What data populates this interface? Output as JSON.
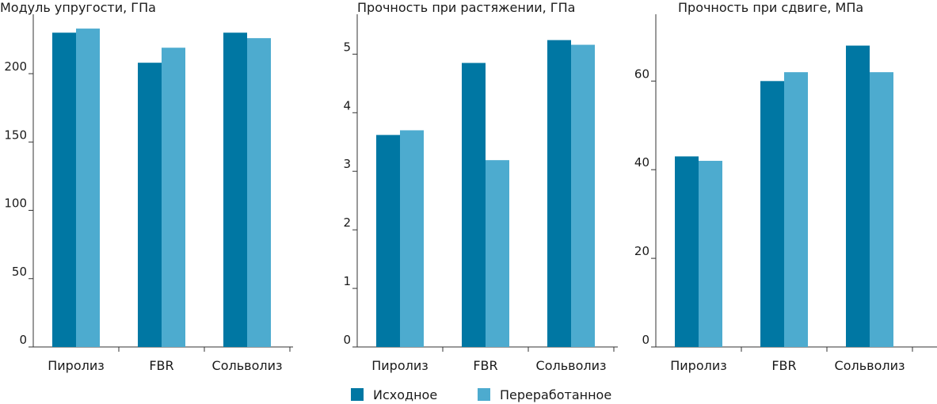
{
  "colors": {
    "original": "#0077a3",
    "recycled": "#4dabcf",
    "axis": "#333333"
  },
  "legend": {
    "original_label": "Исходное",
    "recycled_label": "Переработанное"
  },
  "chart_data": [
    {
      "type": "bar",
      "title": "Модуль упругости, ГПа",
      "categories": [
        "Пиролиз",
        "FBR",
        "Сольволиз"
      ],
      "series": [
        {
          "name": "Исходное",
          "values": [
            230,
            208,
            230
          ]
        },
        {
          "name": "Переработанное",
          "values": [
            233,
            219,
            226
          ]
        }
      ],
      "ylim": [
        0,
        240
      ],
      "yticks": [
        0,
        50,
        100,
        150,
        200
      ],
      "ytick_labels": [
        "0",
        "50",
        "100",
        "150",
        "200"
      ]
    },
    {
      "type": "bar",
      "title": "Прочность при растяжении, ГПа",
      "categories": [
        "Пиролиз",
        "FBR",
        "Сольволиз"
      ],
      "series": [
        {
          "name": "Исходное",
          "values": [
            3.62,
            4.85,
            5.24
          ]
        },
        {
          "name": "Переработанное",
          "values": [
            3.7,
            3.19,
            5.16
          ]
        }
      ],
      "ylim": [
        0,
        5.6
      ],
      "yticks": [
        0,
        1,
        2,
        3,
        4,
        5
      ],
      "ytick_labels": [
        "0",
        "1",
        "2",
        "3",
        "4",
        "5"
      ]
    },
    {
      "type": "bar",
      "title": "Прочность при сдвиге, МПа",
      "categories": [
        "Пиролиз",
        "FBR",
        "Сольволиз"
      ],
      "series": [
        {
          "name": "Исходное",
          "values": [
            43,
            60,
            68
          ]
        },
        {
          "name": "Переработанное",
          "values": [
            42,
            62,
            62
          ]
        }
      ],
      "ylim": [
        0,
        74
      ],
      "yticks": [
        0,
        20,
        40,
        60
      ],
      "ytick_labels": [
        "0",
        "20",
        "40",
        "60"
      ]
    }
  ]
}
